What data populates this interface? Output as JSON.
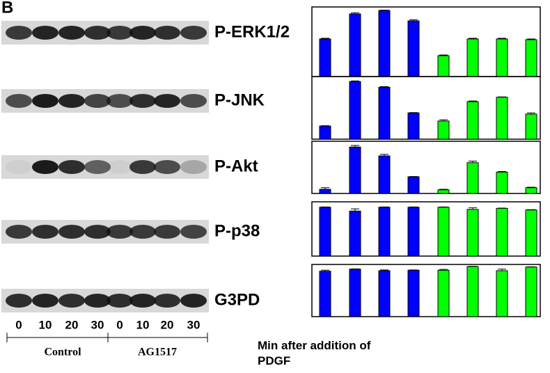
{
  "panel_label": "B",
  "lanes": [
    "0",
    "10",
    "20",
    "30",
    "0",
    "10",
    "20",
    "30"
  ],
  "groups": [
    "Control",
    "AG1517"
  ],
  "xlabel": "Min after addition of PDGF",
  "chart_data": [
    {
      "type": "bar",
      "title": "P-ERK1/2",
      "ylim": [
        0,
        100
      ],
      "values": [
        54,
        90,
        95,
        80,
        30,
        54,
        54,
        53
      ],
      "errors": [
        1,
        1.5,
        0.5,
        1.5,
        1,
        1,
        1,
        1
      ],
      "colors": [
        "#0000ff",
        "#0000ff",
        "#0000ff",
        "#0000ff",
        "#00ff00",
        "#00ff00",
        "#00ff00",
        "#00ff00"
      ]
    },
    {
      "type": "bar",
      "title": "P-JNK",
      "ylim": [
        0,
        100
      ],
      "values": [
        21,
        92,
        83,
        42,
        29,
        60,
        67,
        40
      ],
      "errors": [
        0.5,
        1,
        1,
        0.5,
        2,
        1,
        0.5,
        2
      ],
      "colors": [
        "#0000ff",
        "#0000ff",
        "#0000ff",
        "#0000ff",
        "#00ff00",
        "#00ff00",
        "#00ff00",
        "#00ff00"
      ]
    },
    {
      "type": "bar",
      "title": "P-Akt",
      "ylim": [
        0,
        100
      ],
      "values": [
        8,
        89,
        72,
        32,
        7,
        59,
        41,
        11
      ],
      "errors": [
        3,
        3,
        3,
        0.5,
        1,
        3,
        1,
        1
      ],
      "colors": [
        "#0000ff",
        "#0000ff",
        "#0000ff",
        "#0000ff",
        "#00ff00",
        "#00ff00",
        "#00ff00",
        "#00ff00"
      ]
    },
    {
      "type": "bar",
      "title": "P-p38",
      "ylim": [
        0,
        100
      ],
      "values": [
        90,
        83,
        90,
        90,
        90,
        86,
        88,
        85
      ],
      "errors": [
        0.5,
        4,
        0.5,
        0.5,
        0.5,
        3,
        0.5,
        0.5
      ],
      "colors": [
        "#0000ff",
        "#0000ff",
        "#0000ff",
        "#0000ff",
        "#00ff00",
        "#00ff00",
        "#00ff00",
        "#00ff00"
      ]
    },
    {
      "type": "bar",
      "title": "G3PD",
      "ylim": [
        0,
        100
      ],
      "values": [
        87,
        91,
        88,
        89,
        89,
        96,
        88,
        95
      ],
      "errors": [
        2,
        0.5,
        1.5,
        0.5,
        1.5,
        0.5,
        3,
        0.5
      ],
      "colors": [
        "#0000ff",
        "#0000ff",
        "#0000ff",
        "#0000ff",
        "#00ff00",
        "#00ff00",
        "#00ff00",
        "#00ff00"
      ]
    }
  ]
}
